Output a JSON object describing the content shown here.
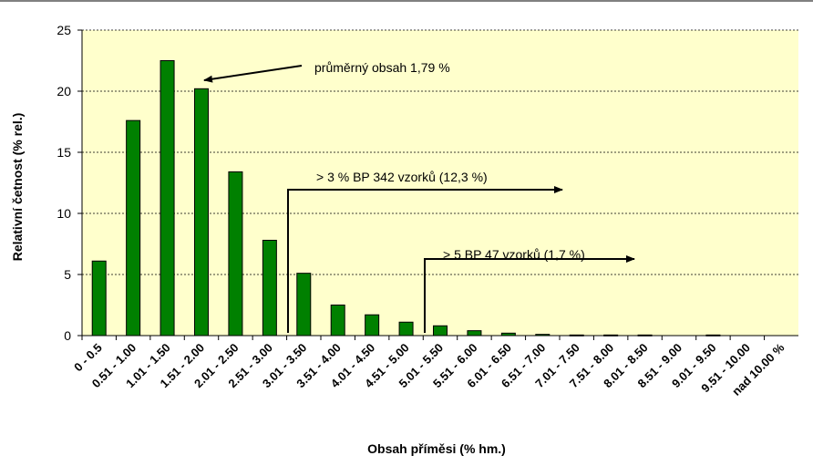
{
  "chart_data": {
    "type": "bar",
    "xlabel": "Obsah příměsi  (% hm.)",
    "ylabel": "Relativní četnost (% rel.)",
    "ylim": [
      0,
      25
    ],
    "yticks": [
      "0",
      "5",
      "10",
      "15",
      "20",
      "25"
    ],
    "grid": "horizontal dashed",
    "colors": {
      "plot_background": "#ffffcc",
      "bar_fill": "#008000",
      "bar_stroke": "#000000"
    },
    "categories": [
      "0 - 0.5",
      "0.51 - 1.00",
      "1.01 - 1.50",
      "1.51 - 2.00",
      "2.01 - 2.50",
      "2.51 - 3.00",
      "3.01 - 3.50",
      "3.51 - 4.00",
      "4.01 - 4.50",
      "4.51 - 5.00",
      "5.01 - 5.50",
      "5.51 - 6.00",
      "6.01 - 6.50",
      "6.51 - 7.00",
      "7.01 - 7.50",
      "7.51 - 8.00",
      "8.01 - 8.50",
      "8.51 - 9.00",
      "9.01 - 9.50",
      "9.51 - 10.00",
      "nad 10.00 %"
    ],
    "values": [
      6.1,
      17.6,
      22.5,
      20.2,
      13.4,
      7.8,
      5.1,
      2.5,
      1.7,
      1.1,
      0.8,
      0.4,
      0.2,
      0.1,
      0.05,
      0.05,
      0.05,
      0,
      0.05,
      0,
      0
    ],
    "annotations": [
      {
        "text": "průměrný obsah 1,79  %"
      },
      {
        "text": "> 3 % BP 342 vzorků  (12,3 %)"
      },
      {
        "text": "> 5  BP 47 vzorků  (1,7 %)"
      }
    ]
  }
}
